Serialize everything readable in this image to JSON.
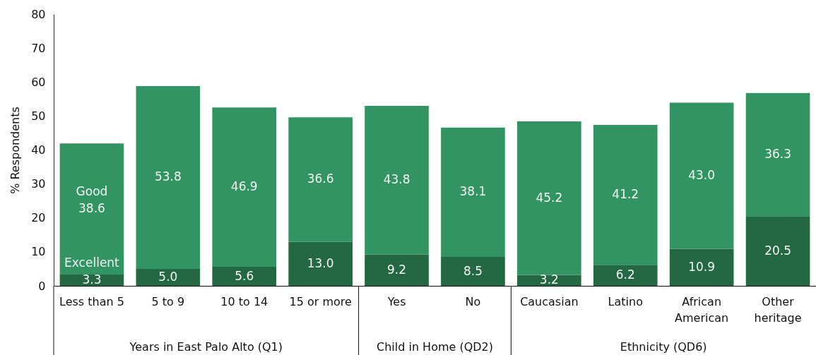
{
  "chart_data": {
    "type": "bar",
    "stacked": true,
    "ylabel": "% Respondents",
    "categories": [
      "Less than 5",
      "5 to 9",
      "10 to 14",
      "15 or more",
      "Yes",
      "No",
      "Caucasian",
      "Latino",
      "African American",
      "Other heritage"
    ],
    "series": [
      {
        "name": "Excellent",
        "color": "#236843",
        "values": [
          3.3,
          5.0,
          5.6,
          13.0,
          9.2,
          8.5,
          3.2,
          6.2,
          10.9,
          20.5
        ],
        "value_labels": [
          "3.3",
          "5.0",
          "5.6",
          "13.0",
          "9.2",
          "8.5",
          "3.2",
          "6.2",
          "10.9",
          "20.5"
        ]
      },
      {
        "name": "Good",
        "color": "#329463",
        "values": [
          38.6,
          53.8,
          46.9,
          36.6,
          43.8,
          38.1,
          45.2,
          41.2,
          43.0,
          36.3
        ],
        "value_labels": [
          "38.6",
          "53.8",
          "46.9",
          "36.6",
          "43.8",
          "38.1",
          "45.2",
          "41.2",
          "43.0",
          "36.3"
        ]
      }
    ],
    "ylim": [
      0,
      80
    ],
    "yticks": [
      0,
      10,
      20,
      30,
      40,
      50,
      60,
      70,
      80
    ],
    "annotations": [
      "Years in East Palo Alto (Q1)",
      "Child in Home (QD2)",
      "Ethnicity (QD6)"
    ]
  }
}
